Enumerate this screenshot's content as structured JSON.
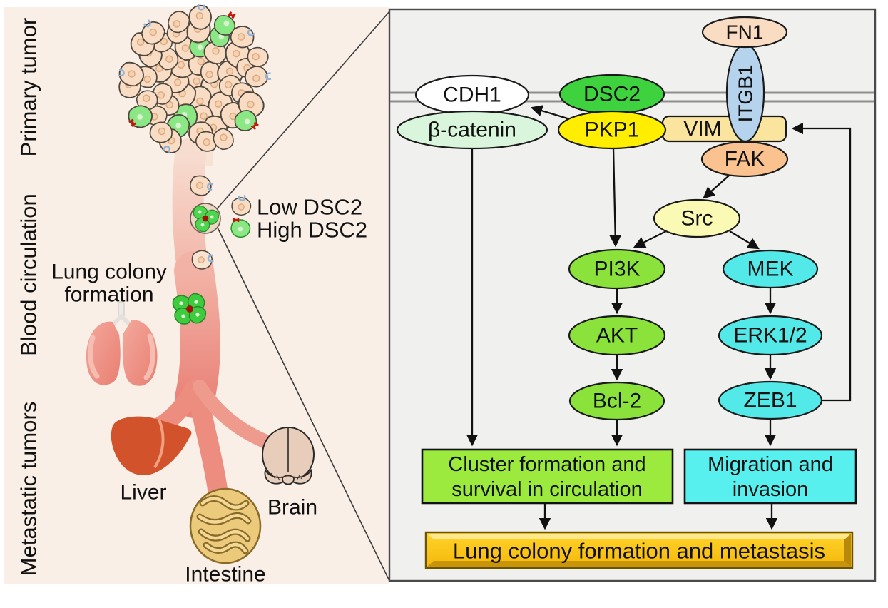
{
  "figure": {
    "left_panel": {
      "sections": [
        "Primary tumor",
        "Blood circulation",
        "Metastatic tumors"
      ],
      "legend": {
        "low": "Low DSC2",
        "high": "High DSC2"
      },
      "lung_label": [
        "Lung colony",
        "formation"
      ],
      "organs": {
        "liver": "Liver",
        "brain": "Brain",
        "intestine": "Intestine"
      }
    },
    "pathway": {
      "fn1": "FN1",
      "itgb1": "ITGB1",
      "cdh1": "CDH1",
      "dsc2": "DSC2",
      "b_catenin": "β-catenin",
      "pkp1": "PKP1",
      "vim": "VIM",
      "fak": "FAK",
      "src": "Src",
      "pi3k": "PI3K",
      "mek": "MEK",
      "akt": "AKT",
      "erk12": "ERK1/2",
      "bcl2": "Bcl-2",
      "zeb1": "ZEB1",
      "outcomes": {
        "cluster": [
          "Cluster formation and",
          "survival in circulation"
        ],
        "migration": [
          "Migration and",
          "invasion"
        ],
        "final": "Lung colony formation and metastasis"
      }
    },
    "colors": {
      "dsc2_green": "#3ed33e",
      "cascade_green": "#8ae23b",
      "outcome_green": "#9cea3e",
      "cyan": "#54e9e9",
      "pkp1_yellow": "#ffee00",
      "src_pale_yellow": "#fbfab4",
      "b_catenin_pale_green": "#d9f6dc",
      "fn1_peach": "#fadcc3",
      "itgb1_blue": "#b5d3ed",
      "vim_wheat": "#fbe49e",
      "fak_orange": "#f9c28f",
      "gold_box": "#fdc608",
      "left_bg": "#f9efe7",
      "right_bg": "#f0f0ee",
      "vessel_salmon": "#ef9e92"
    }
  }
}
